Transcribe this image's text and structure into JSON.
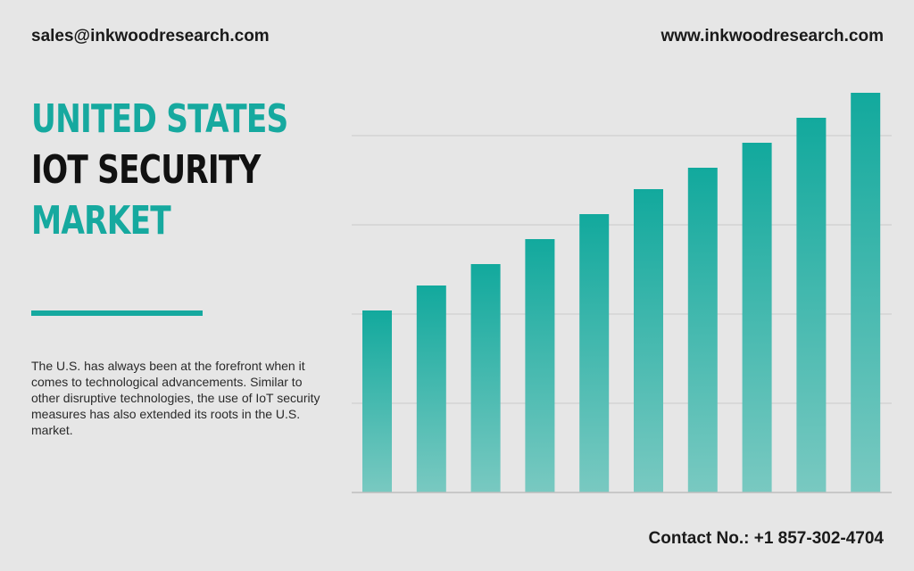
{
  "header": {
    "email": "sales@inkwoodresearch.com",
    "website": "www.inkwoodresearch.com"
  },
  "title": {
    "line1": "UNITED STATES",
    "line2": "IOT SECURITY",
    "line3": "MARKET"
  },
  "description": "The U.S. has always been at the forefront when it comes to technological advancements. Similar to other disruptive technologies, the use of IoT security measures has also extended its roots in the U.S. market.",
  "footer": {
    "contact": "Contact No.: +1 857-302-4704"
  },
  "colors": {
    "accent": "#16a99f",
    "bar_top": "#12a99d",
    "bar_bottom": "#79c9c1",
    "background": "#e6e6e6"
  },
  "chart_data": {
    "type": "bar",
    "values": [
      51,
      58,
      64,
      71,
      78,
      85,
      91,
      98,
      105,
      112
    ],
    "ylim": [
      0,
      112
    ],
    "grid": true,
    "gridlines": [
      25,
      50,
      75,
      100
    ],
    "title": "",
    "xlabel": "",
    "ylabel": ""
  }
}
